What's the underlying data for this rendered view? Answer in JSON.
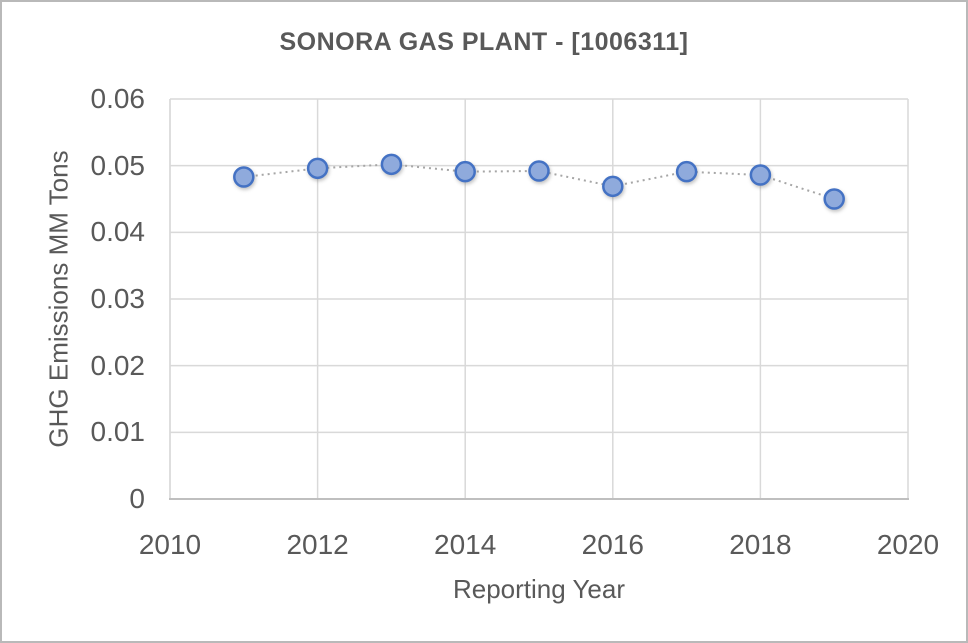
{
  "chart_data": {
    "type": "scatter",
    "title": "SONORA GAS PLANT - [1006311]",
    "xlabel": "Reporting Year",
    "ylabel": "GHG Emissions MM Tons",
    "x": [
      2011,
      2012,
      2013,
      2014,
      2015,
      2016,
      2017,
      2018,
      2019
    ],
    "values": [
      0.0483,
      0.0496,
      0.0502,
      0.0491,
      0.0492,
      0.0469,
      0.0491,
      0.0486,
      0.045
    ],
    "series_name": "GHG Emissions",
    "xlim": [
      2010,
      2020
    ],
    "ylim": [
      0,
      0.06
    ],
    "x_ticks": [
      "2010",
      "2012",
      "2014",
      "2016",
      "2018",
      "2020"
    ],
    "y_ticks": [
      "0.06",
      "0.05",
      "0.04",
      "0.03",
      "0.02",
      "0.01",
      "0"
    ],
    "grid": true,
    "legend": "none",
    "line_style": "dotted",
    "colors": {
      "marker_fill": "#8FAADC",
      "marker_border": "#4472C4",
      "line": "#A6A6A6",
      "gridline": "#D9D9D9",
      "axis_line": "#BFBFBF",
      "text": "#595959",
      "background": "#FFFFFF",
      "canvas_border": "#B9B9B9"
    }
  }
}
